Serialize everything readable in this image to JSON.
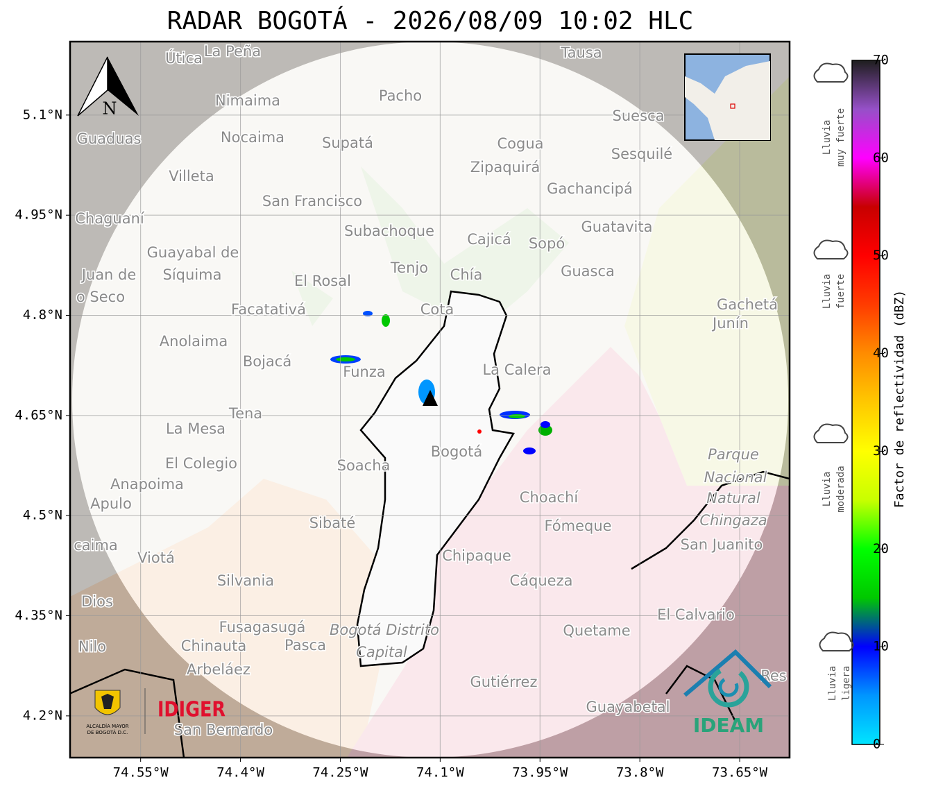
{
  "map": {
    "title": "RADAR BOGOTÁ - 2026/08/09 10:02 HLC",
    "xlim": [
      -74.656,
      -73.575
    ],
    "ylim": [
      4.1375,
      5.21
    ],
    "xticks": [
      {
        "value": -74.55,
        "label": "74.55°W"
      },
      {
        "value": -74.4,
        "label": "74.4°W"
      },
      {
        "value": -74.25,
        "label": "74.25°W"
      },
      {
        "value": -74.1,
        "label": "74.1°W"
      },
      {
        "value": -73.95,
        "label": "73.95°W"
      },
      {
        "value": -73.8,
        "label": "73.8°W"
      },
      {
        "value": -73.65,
        "label": "73.65°W"
      }
    ],
    "yticks": [
      {
        "value": 5.1,
        "label": "5.1°N"
      },
      {
        "value": 4.95,
        "label": "4.95°N"
      },
      {
        "value": 4.8,
        "label": "4.8°N"
      },
      {
        "value": 4.65,
        "label": "4.65°N"
      },
      {
        "value": 4.5,
        "label": "4.5°N"
      },
      {
        "value": 4.35,
        "label": "4.35°N"
      },
      {
        "value": 4.2,
        "label": "4.2°N"
      }
    ],
    "grid": true,
    "north": "N",
    "places": [
      "Útica",
      "La Peña",
      "Tausa",
      "Pacho",
      "Nimaima",
      "Guaduas",
      "Nocaima",
      "Supatá",
      "Cogua",
      "Suesca",
      "Sesquilé",
      "Zipaquirá",
      "Villeta",
      "Gachancipá",
      "San Francisco",
      "Chaguaní",
      "Guatavita",
      "Subachoque",
      "Cajicá",
      "Sopó",
      "Guayabal de",
      "Síquima",
      "Juan de",
      "o Seco",
      "Tenjo",
      "Chía",
      "Guasca",
      "El Rosal",
      "Facatativá",
      "Cota",
      "Gachetá",
      "Junín",
      "Anolaima",
      "Bojacá",
      "Funza",
      "La Calera",
      "Tena",
      "La Mesa",
      "Bogotá",
      "El Colegio",
      "Soacha",
      "Parque",
      "Nacional",
      "Natural",
      "Chingaza",
      "Anapoima",
      "Apulo",
      "Choachí",
      "Sibaté",
      "Fómeque",
      "San Juanito",
      "caima",
      "Viotá",
      "Chipaque",
      "Silvania",
      "Cáqueza",
      "Dios",
      "El Calvario",
      "Fusagasugá",
      "Bogotá Distrito",
      "Capital",
      "Quetame",
      "Nilo",
      "Chinauta",
      "Pasca",
      "Arbeláez",
      "Gutiérrez",
      "Guayabetal",
      "San Bernardo",
      "Res"
    ],
    "logos": {
      "alcaldia": [
        "ALCALDÍA MAYOR",
        "DE BOGOTÁ D.C."
      ],
      "idiger": "IDIGER",
      "ideam": "IDEAM"
    }
  },
  "colorbar": {
    "range": [
      0,
      70
    ],
    "ticks": [
      0,
      10,
      20,
      30,
      40,
      50,
      60,
      70
    ],
    "label": "Factor de reflectividad (dBZ)",
    "colors": [
      "#00e5ff",
      "#0096ff",
      "#0000ff",
      "#00c800",
      "#00ff00",
      "#c8ff00",
      "#ffff00",
      "#ffc800",
      "#ff8c00",
      "#ff3c00",
      "#ff0000",
      "#c80000",
      "#ff00ff",
      "#9650c8",
      "#1e1e1e"
    ],
    "intensity": [
      [
        "Lluvia",
        "muy fuerte"
      ],
      [
        "Lluvia",
        "fuerte"
      ],
      [
        "Lluvia",
        "moderada"
      ],
      [
        "Lluvia",
        "ligera"
      ]
    ]
  }
}
